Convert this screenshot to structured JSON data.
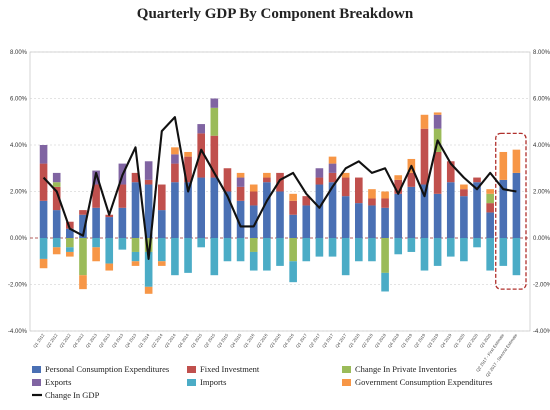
{
  "chart_data": {
    "type": "bar",
    "stacked": true,
    "title": "Quarterly GDP By Component Breakdown",
    "ylim": [
      -4,
      8
    ],
    "y_ticks": [
      "-4.00%",
      "-2.00%",
      "0.00%",
      "2.00%",
      "4.00%",
      "6.00%",
      "8.00%"
    ],
    "y_tick_values": [
      -4,
      -2,
      0,
      2,
      4,
      6,
      8
    ],
    "grid": true,
    "legend_position": "bottom",
    "categories": [
      "Q1 2012",
      "Q2 2012",
      "Q3 2012",
      "Q4 2012",
      "Q1 2013",
      "Q2 2013",
      "Q3 2013",
      "Q4 2013",
      "Q1 2014",
      "Q2 2014",
      "Q3 2014",
      "Q4 2014",
      "Q1 2015",
      "Q2 2015",
      "Q3 2015",
      "Q4 2015",
      "Q1 2016",
      "Q2 2016",
      "Q3 2016",
      "Q4 2016",
      "Q1 2017",
      "Q2 2017",
      "Q3 2017",
      "Q4 2017",
      "Q1 2018",
      "Q2 2018",
      "Q3 2018",
      "Q4 2018",
      "Q1 2019",
      "Q2 2019",
      "Q3 2019",
      "Q4 2019",
      "Q1 2020",
      "Q2 2020",
      "Q3 2020",
      "Q2 2017 - First Estimate",
      "Q2 2017 - Second Estimate"
    ],
    "series": [
      {
        "name": "Personal Consumption Expenditures",
        "color": "#4a70b4",
        "values": [
          1.6,
          1.2,
          0.4,
          1.0,
          1.3,
          0.9,
          1.3,
          2.4,
          2.3,
          1.2,
          2.4,
          2.4,
          2.6,
          2.6,
          2.0,
          1.6,
          1.4,
          2.4,
          2.0,
          1.0,
          1.4,
          2.3,
          2.4,
          1.8,
          1.5,
          1.4,
          1.3,
          1.9,
          2.2,
          2.3,
          1.9,
          2.4,
          1.8,
          2.4,
          1.1,
          2.5,
          2.8
        ]
      },
      {
        "name": "Fixed Investment",
        "color": "#c0504d",
        "values": [
          1.6,
          1.0,
          0.3,
          0.2,
          1.0,
          0.1,
          1.0,
          0.4,
          0.2,
          1.1,
          0.8,
          1.1,
          1.9,
          1.8,
          1.0,
          0.6,
          0.6,
          0.2,
          0.8,
          0.6,
          0.4,
          0.3,
          0.4,
          0.8,
          1.1,
          0.3,
          0.4,
          0.6,
          0.6,
          2.4,
          1.8,
          0.9,
          0.3,
          0.2,
          0.4,
          0.0,
          0.0
        ]
      },
      {
        "name": "Change In Private Inventories",
        "color": "#9bbb59",
        "values": [
          0.0,
          0.2,
          -0.4,
          -1.6,
          0.0,
          0.0,
          0.0,
          -0.6,
          -0.6,
          0.0,
          0.0,
          0.0,
          0.0,
          1.2,
          0.0,
          0.0,
          -0.6,
          0.0,
          0.0,
          -1.0,
          0.0,
          0.0,
          0.0,
          0.0,
          0.0,
          0.0,
          -1.5,
          0.0,
          0.0,
          0.0,
          1.0,
          0.0,
          0.0,
          0.0,
          0.4,
          0.0,
          0.0
        ]
      },
      {
        "name": "Exports",
        "color": "#8064a2",
        "values": [
          0.8,
          0.4,
          0.0,
          0.0,
          0.6,
          0.0,
          0.9,
          0.0,
          0.8,
          0.0,
          0.4,
          0.0,
          0.4,
          0.4,
          0.0,
          0.4,
          0.0,
          0.0,
          0.0,
          0.0,
          0.0,
          0.4,
          0.4,
          0.0,
          0.0,
          0.0,
          0.0,
          0.0,
          0.0,
          0.0,
          0.6,
          0.0,
          0.0,
          0.0,
          0.0,
          0.0,
          0.0
        ]
      },
      {
        "name": "Imports",
        "color": "#4bacc6",
        "values": [
          -0.9,
          -0.4,
          -0.2,
          0.0,
          -0.4,
          -1.1,
          -0.5,
          -0.4,
          -1.5,
          -1.0,
          -1.6,
          -1.5,
          -0.4,
          -1.6,
          -1.0,
          -1.0,
          -0.8,
          -1.4,
          -1.2,
          -0.9,
          -1.0,
          -0.8,
          -0.8,
          -1.6,
          -1.0,
          -1.0,
          -0.8,
          -0.7,
          -0.6,
          -1.4,
          -1.2,
          -0.8,
          -1.0,
          -0.4,
          -1.4,
          -1.2,
          -1.6
        ]
      },
      {
        "name": "Government Consumption Expenditures",
        "color": "#f79646",
        "values": [
          -0.4,
          -0.3,
          -0.2,
          -0.6,
          -0.6,
          -0.3,
          0.0,
          -0.2,
          -0.3,
          -0.2,
          0.3,
          0.2,
          0.0,
          0.0,
          0.0,
          0.2,
          0.3,
          0.2,
          0.0,
          0.3,
          0.0,
          0.0,
          0.3,
          0.2,
          0.0,
          0.4,
          0.3,
          0.2,
          0.6,
          0.6,
          0.1,
          0.0,
          0.2,
          0.0,
          0.2,
          1.2,
          1.0
        ]
      }
    ],
    "line_series": {
      "name": "Change In GDP",
      "color": "#111111",
      "values": [
        2.6,
        2.0,
        0.4,
        0.1,
        2.8,
        1.0,
        2.7,
        3.9,
        -0.9,
        4.6,
        5.2,
        2.0,
        3.8,
        2.8,
        1.8,
        0.5,
        0.5,
        1.6,
        2.5,
        2.8,
        1.9,
        1.3,
        2.2,
        3.0,
        3.3,
        2.8,
        3.0,
        1.9,
        3.1,
        1.8,
        4.2,
        3.2,
        2.6,
        2.1,
        2.8,
        2.1,
        2.0
      ]
    },
    "highlight": {
      "from_index": 35,
      "to_index": 36,
      "color": "#b0312d"
    }
  }
}
